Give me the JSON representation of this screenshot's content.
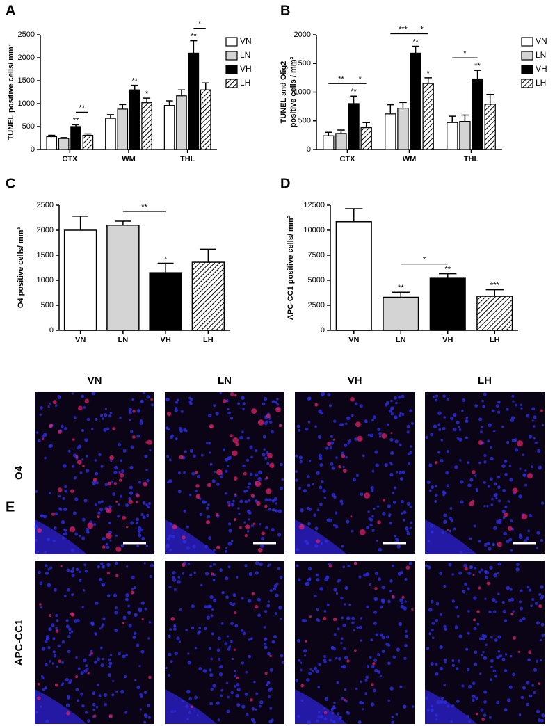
{
  "chart_data": [
    {
      "type": "bar",
      "panel": "A",
      "ylabel": "TUNEL positive cells/ mm³",
      "categories": [
        "CTX",
        "WM",
        "THL"
      ],
      "ylim": [
        0,
        2500
      ],
      "yticks": [
        0,
        500,
        1000,
        1500,
        2000,
        2500
      ],
      "series": [
        {
          "name": "VN",
          "color": "#ffffff",
          "hatch": false,
          "values": [
            280,
            680,
            960
          ],
          "errors": [
            30,
            80,
            100
          ],
          "stars": [
            null,
            null,
            null
          ]
        },
        {
          "name": "LN",
          "color": "#d4d4d4",
          "hatch": false,
          "values": [
            240,
            880,
            1170
          ],
          "errors": [
            20,
            100,
            130
          ],
          "stars": [
            null,
            null,
            null
          ]
        },
        {
          "name": "VH",
          "color": "#000000",
          "hatch": false,
          "values": [
            500,
            1300,
            2100
          ],
          "errors": [
            40,
            100,
            270
          ],
          "stars": [
            "**",
            "**",
            "**"
          ]
        },
        {
          "name": "LH",
          "color": "#ffffff",
          "hatch": true,
          "values": [
            310,
            1020,
            1300
          ],
          "errors": [
            30,
            100,
            150
          ],
          "stars": [
            null,
            "*",
            null
          ]
        }
      ],
      "brackets": [
        {
          "text": "**",
          "category": "CTX",
          "from": "VH",
          "to": "LH"
        },
        {
          "text": "*",
          "category": "THL",
          "from": "VH",
          "to": "LH"
        }
      ]
    },
    {
      "type": "bar",
      "panel": "B",
      "ylabel": [
        "TUNEL and Olig2",
        "positive cells / mm³"
      ],
      "categories": [
        "CTX",
        "WM",
        "THL"
      ],
      "ylim": [
        0,
        2000
      ],
      "yticks": [
        0,
        500,
        1000,
        1500,
        2000
      ],
      "series": [
        {
          "name": "VN",
          "color": "#ffffff",
          "hatch": false,
          "values": [
            240,
            620,
            470
          ],
          "errors": [
            60,
            160,
            110
          ],
          "stars": [
            null,
            null,
            null
          ]
        },
        {
          "name": "LN",
          "color": "#d4d4d4",
          "hatch": false,
          "values": [
            280,
            720,
            490
          ],
          "errors": [
            60,
            100,
            110
          ],
          "stars": [
            null,
            null,
            null
          ]
        },
        {
          "name": "VH",
          "color": "#000000",
          "hatch": false,
          "values": [
            800,
            1680,
            1230
          ],
          "errors": [
            130,
            120,
            150
          ],
          "stars": [
            "**",
            "**",
            "**"
          ]
        },
        {
          "name": "LH",
          "color": "#ffffff",
          "hatch": true,
          "values": [
            380,
            1150,
            790
          ],
          "errors": [
            90,
            100,
            170
          ],
          "stars": [
            null,
            "*",
            null
          ]
        }
      ],
      "brackets": [
        {
          "text": "**",
          "category": "CTX",
          "from": "VN",
          "to": "VH"
        },
        {
          "text": "*",
          "category": "CTX",
          "from": "VH",
          "to": "LH"
        },
        {
          "text": "***",
          "category": "WM",
          "from": "VN",
          "to": "VH"
        },
        {
          "text": "*",
          "category": "WM",
          "from": "VH",
          "to": "LH"
        },
        {
          "text": "*",
          "category": "THL",
          "from": "VN",
          "to": "VH"
        }
      ]
    },
    {
      "type": "bar",
      "panel": "C",
      "ylabel": "O4 positive cells/ mm³",
      "categories": [
        "VN",
        "LN",
        "VH",
        "LH"
      ],
      "ylim": [
        0,
        2500
      ],
      "yticks": [
        0,
        500,
        1000,
        1500,
        2000,
        2500
      ],
      "values": [
        2000,
        2100,
        1150,
        1360
      ],
      "errors": [
        280,
        80,
        190,
        260
      ],
      "colors": [
        "#ffffff",
        "#d4d4d4",
        "#000000",
        "#ffffff"
      ],
      "hatch": [
        false,
        false,
        false,
        true
      ],
      "stars": [
        null,
        null,
        "*",
        null
      ],
      "brackets": [
        {
          "text": "**",
          "from": "LN",
          "to": "VH"
        }
      ]
    },
    {
      "type": "bar",
      "panel": "D",
      "ylabel": "APC-CC1 positive cells/ mm³",
      "categories": [
        "VN",
        "LN",
        "VH",
        "LH"
      ],
      "ylim": [
        0,
        12500
      ],
      "yticks": [
        0,
        2500,
        5000,
        7500,
        10000,
        12500
      ],
      "values": [
        10850,
        3300,
        5200,
        3400
      ],
      "errors": [
        1300,
        500,
        450,
        650
      ],
      "colors": [
        "#ffffff",
        "#d4d4d4",
        "#000000",
        "#ffffff"
      ],
      "hatch": [
        false,
        false,
        false,
        true
      ],
      "stars": [
        null,
        "**",
        "**",
        "***"
      ],
      "brackets": [
        {
          "text": "*",
          "from": "LN",
          "to": "VH"
        }
      ]
    }
  ],
  "panel_e": {
    "panel": "E",
    "columns": [
      "VN",
      "LN",
      "VH",
      "LH"
    ],
    "rows": [
      "O4",
      "APC-CC1"
    ]
  }
}
